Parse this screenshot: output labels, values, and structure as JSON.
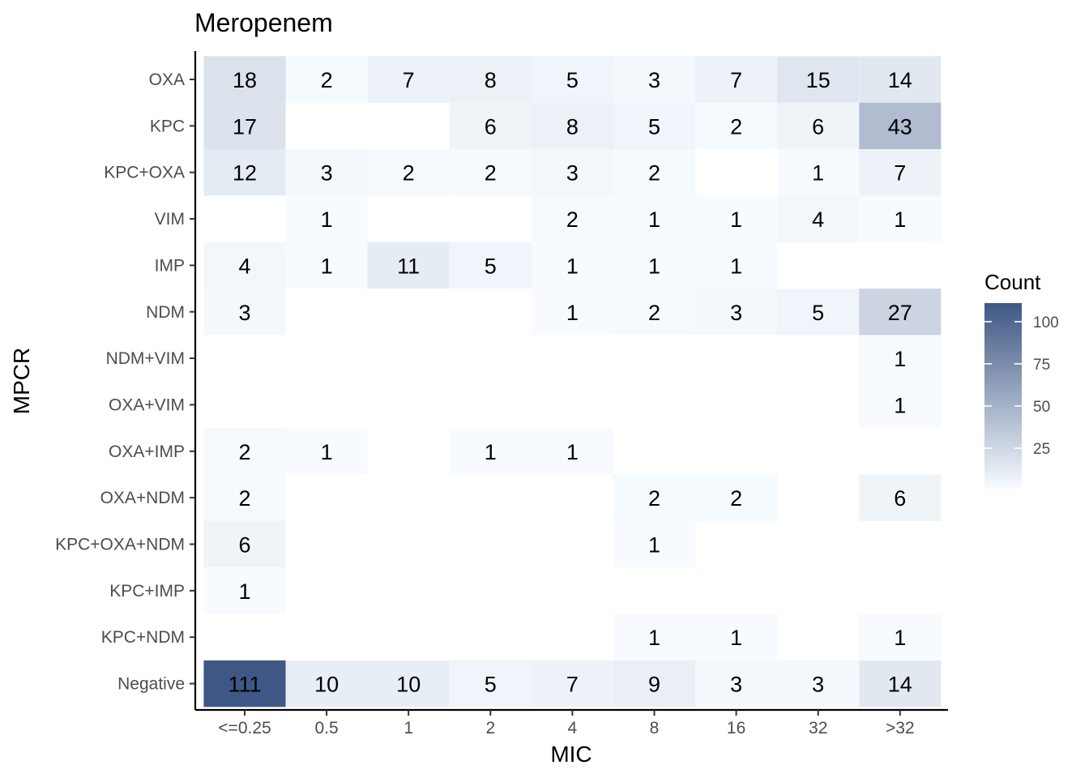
{
  "chart_data": {
    "type": "heatmap",
    "title": "Meropenem",
    "xlabel": "MIC",
    "ylabel": "MPCR",
    "x_categories": [
      "<=0.25",
      "0.5",
      "1",
      "2",
      "4",
      "8",
      "16",
      "32",
      ">32"
    ],
    "y_categories": [
      "OXA",
      "KPC",
      "KPC+OXA",
      "VIM",
      "IMP",
      "NDM",
      "NDM+VIM",
      "OXA+VIM",
      "OXA+IMP",
      "OXA+NDM",
      "KPC+OXA+NDM",
      "KPC+IMP",
      "KPC+NDM",
      "Negative"
    ],
    "values": [
      [
        18,
        2,
        7,
        8,
        5,
        3,
        7,
        15,
        14
      ],
      [
        17,
        null,
        null,
        6,
        8,
        5,
        2,
        6,
        43
      ],
      [
        12,
        3,
        2,
        2,
        3,
        2,
        null,
        1,
        7
      ],
      [
        null,
        1,
        null,
        null,
        2,
        1,
        1,
        4,
        1
      ],
      [
        4,
        1,
        11,
        5,
        1,
        1,
        1,
        null,
        null
      ],
      [
        3,
        null,
        null,
        null,
        1,
        2,
        3,
        5,
        27
      ],
      [
        null,
        null,
        null,
        null,
        null,
        null,
        null,
        null,
        1
      ],
      [
        null,
        null,
        null,
        null,
        null,
        null,
        null,
        null,
        1
      ],
      [
        2,
        1,
        null,
        1,
        1,
        null,
        null,
        null,
        null
      ],
      [
        2,
        null,
        null,
        null,
        null,
        2,
        2,
        null,
        6
      ],
      [
        6,
        null,
        null,
        null,
        null,
        1,
        null,
        null,
        null
      ],
      [
        1,
        null,
        null,
        null,
        null,
        null,
        null,
        null,
        null
      ],
      [
        null,
        null,
        null,
        null,
        null,
        1,
        1,
        null,
        1
      ],
      [
        111,
        10,
        10,
        5,
        7,
        9,
        3,
        3,
        14
      ]
    ],
    "legend": {
      "title": "Count",
      "ticks": [
        "100",
        "75",
        "50",
        "25"
      ],
      "tick_values": [
        100,
        75,
        50,
        25
      ],
      "min": 1,
      "max": 111,
      "low_color": "#f7fbff",
      "high_color": "#3f5784",
      "placement": "right"
    },
    "grid": false
  }
}
